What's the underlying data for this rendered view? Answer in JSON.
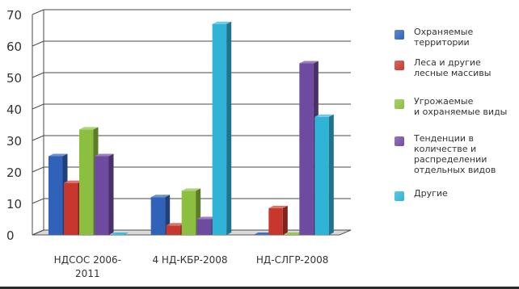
{
  "chart_data": {
    "type": "bar",
    "categories": [
      "НДСОС 2006-\n2011",
      "4 НД-КБР-2008",
      "НД-СЛГР-2008"
    ],
    "y_ticks": [
      "0",
      "10",
      "20",
      "30",
      "40",
      "50",
      "60",
      "70"
    ],
    "ylim": [
      0,
      70
    ],
    "grid": true,
    "legend_position": "right",
    "series": [
      {
        "name": "Охраняемые\nтерритории",
        "color": "#2f62b8",
        "values": [
          25,
          12,
          0
        ]
      },
      {
        "name": "Леса и другие\nлесные массивы",
        "color": "#c8372e",
        "values": [
          16.5,
          3,
          8.5
        ]
      },
      {
        "name": "Угрожаемые\nи охраняемые виды",
        "color": "#8cbf3f",
        "values": [
          33.5,
          14,
          0
        ]
      },
      {
        "name": "Тенденции в\nколичестве и\nраспределении\nотдельных видов",
        "color": "#6f4aa1",
        "values": [
          25,
          5,
          54.5
        ]
      },
      {
        "name": "Другие",
        "color": "#2fb3d6",
        "values": [
          0,
          67,
          37.5
        ]
      }
    ]
  }
}
